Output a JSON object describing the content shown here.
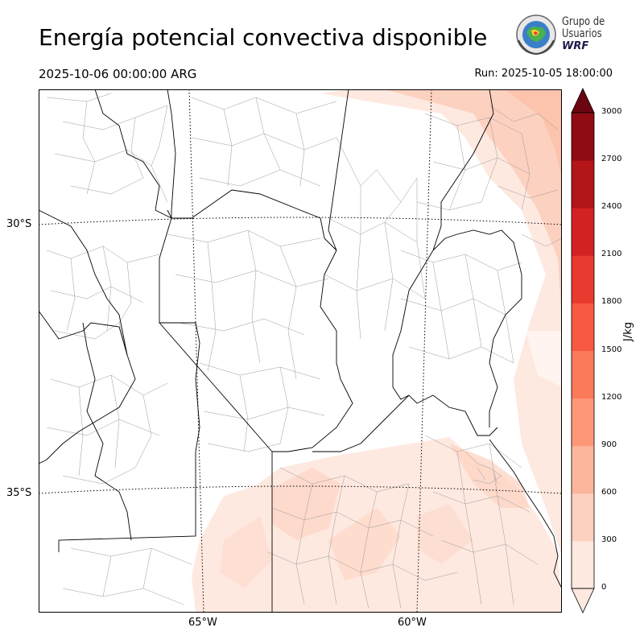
{
  "header": {
    "title": "Energía potencial convectiva disponible",
    "valid_time": "2025-10-06 00:00:00 ARG",
    "run_time": "Run: 2025-10-05 18:00:00"
  },
  "logo": {
    "line1": "Grupo de",
    "line2": "Usuarios",
    "line3": "WRF"
  },
  "map": {
    "lat_labels": [
      "30°S",
      "35°S"
    ],
    "lon_labels": [
      "65°W",
      "60°W"
    ]
  },
  "colorbar": {
    "unit": "J/kg",
    "levels": [
      "0",
      "300",
      "600",
      "900",
      "1200",
      "1500",
      "1800",
      "2100",
      "2400",
      "2700",
      "3000"
    ],
    "colors": [
      "#fee9e0",
      "#fdd1c0",
      "#fcb69b",
      "#fc9878",
      "#fb7a59",
      "#f65940",
      "#e93a2f",
      "#d32222",
      "#b31519",
      "#8f0c14",
      "#6b0510"
    ],
    "extend": "both"
  }
}
